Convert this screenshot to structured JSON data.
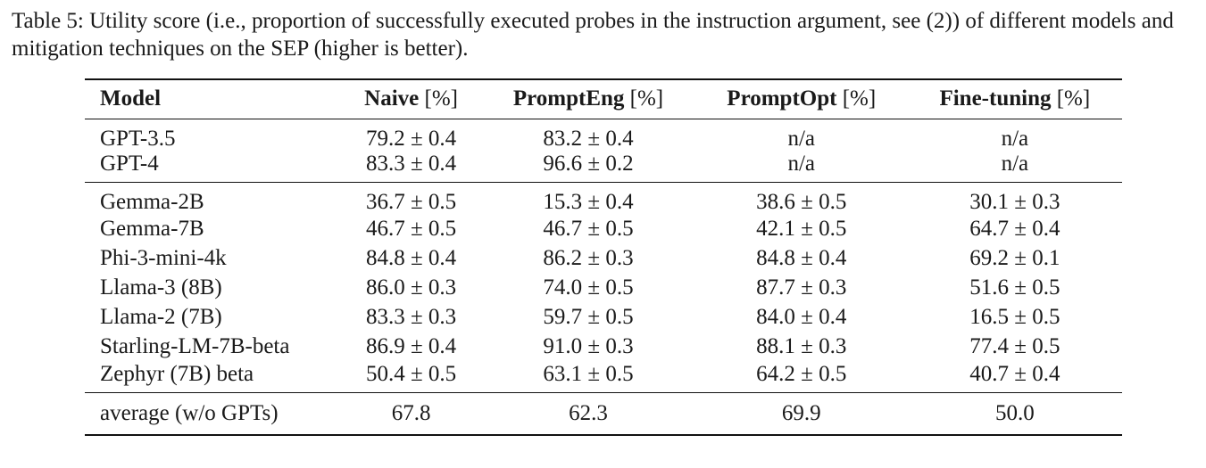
{
  "caption": "Table 5: Utility score (i.e., proportion of successfully executed probes in the instruction argument, see (2)) of different models and mitigation techniques on the SEP (higher is better).",
  "headers": [
    {
      "bold": "Model",
      "unit": ""
    },
    {
      "bold": "Naive",
      "unit": "[%]"
    },
    {
      "bold": "PromptEng",
      "unit": "[%]"
    },
    {
      "bold": "PromptOpt",
      "unit": "[%]"
    },
    {
      "bold": "Fine-tuning",
      "unit": "[%]"
    }
  ],
  "gpt_rows": [
    {
      "model": "GPT-3.5",
      "naive": "79.2 ± 0.4",
      "prompteng": "83.2 ± 0.4",
      "promptopt": "n/a",
      "finetuning": "n/a"
    },
    {
      "model": "GPT-4",
      "naive": "83.3 ± 0.4",
      "prompteng": "96.6 ± 0.2",
      "promptopt": "n/a",
      "finetuning": "n/a"
    }
  ],
  "open_rows": [
    {
      "model": "Gemma-2B",
      "naive": "36.7 ± 0.5",
      "prompteng": "15.3 ± 0.4",
      "promptopt": "38.6 ± 0.5",
      "finetuning": "30.1 ± 0.3"
    },
    {
      "model": "Gemma-7B",
      "naive": "46.7 ± 0.5",
      "prompteng": "46.7 ± 0.5",
      "promptopt": "42.1 ± 0.5",
      "finetuning": "64.7 ± 0.4"
    },
    {
      "model": "Phi-3-mini-4k",
      "naive": "84.8 ± 0.4",
      "prompteng": "86.2 ± 0.3",
      "promptopt": "84.8 ± 0.4",
      "finetuning": "69.2 ± 0.1"
    },
    {
      "model": "Llama-3 (8B)",
      "naive": "86.0 ± 0.3",
      "prompteng": "74.0 ± 0.5",
      "promptopt": "87.7 ± 0.3",
      "finetuning": "51.6 ± 0.5"
    },
    {
      "model": "Llama-2 (7B)",
      "naive": "83.3 ± 0.3",
      "prompteng": "59.7 ± 0.5",
      "promptopt": "84.0 ± 0.4",
      "finetuning": "16.5 ± 0.5"
    },
    {
      "model": "Starling-LM-7B-beta",
      "naive": "86.9 ± 0.4",
      "prompteng": "91.0 ± 0.3",
      "promptopt": "88.1 ± 0.3",
      "finetuning": "77.4 ± 0.5"
    },
    {
      "model": "Zephyr (7B) beta",
      "naive": "50.4 ± 0.5",
      "prompteng": "63.1 ± 0.5",
      "promptopt": "64.2 ± 0.5",
      "finetuning": "40.7 ± 0.4"
    }
  ],
  "average_row": {
    "model": "average (w/o GPTs)",
    "naive": "67.8",
    "prompteng": "62.3",
    "promptopt": "69.9",
    "finetuning": "50.0"
  }
}
